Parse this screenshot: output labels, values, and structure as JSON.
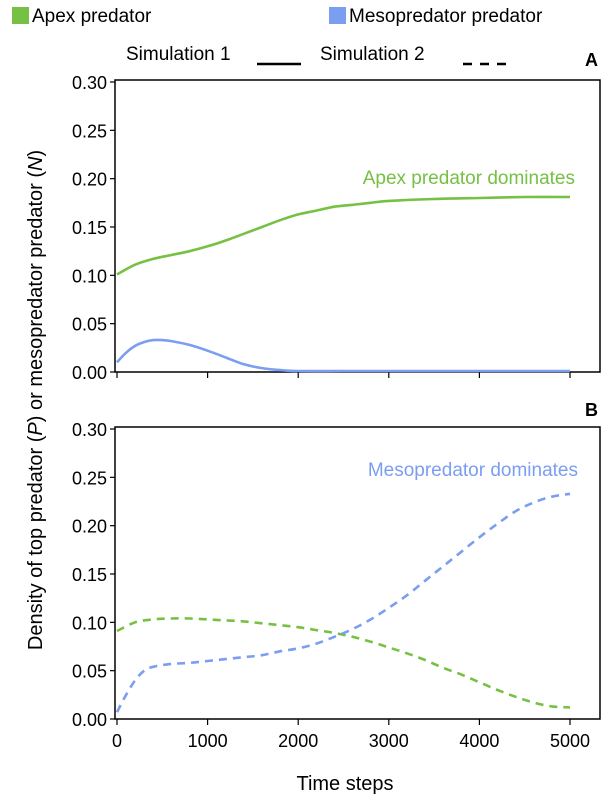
{
  "legend": {
    "apex_label": "Apex predator",
    "meso_label": "Mesopredator predator",
    "sim1_label": "Simulation 1",
    "sim2_label": "Simulation 2",
    "apex_color": "#76c043",
    "meso_color": "#7b9ef0"
  },
  "ylabel": "Density of top predator (P) or mesopredator predator (N)",
  "xlabel": "Time steps",
  "chart_data": [
    {
      "panel": "A",
      "type": "line",
      "annotation": "Apex predator dominates",
      "annotation_color": "#76c043",
      "xlim": [
        0,
        5000
      ],
      "ylim": [
        0,
        0.3
      ],
      "x_ticks": [
        0,
        1000,
        2000,
        3000,
        4000,
        5000
      ],
      "y_ticks": [
        "0.00",
        "0.05",
        "0.10",
        "0.15",
        "0.20",
        "0.25",
        "0.30"
      ],
      "series": [
        {
          "name": "Apex predator",
          "style": "solid",
          "color": "#76c043",
          "x": [
            0,
            200,
            400,
            600,
            800,
            1000,
            1200,
            1400,
            1600,
            1800,
            2000,
            2200,
            2400,
            2600,
            2800,
            3000,
            3500,
            4000,
            4500,
            5000
          ],
          "y": [
            0.101,
            0.111,
            0.117,
            0.121,
            0.125,
            0.13,
            0.136,
            0.143,
            0.15,
            0.157,
            0.163,
            0.167,
            0.171,
            0.173,
            0.175,
            0.177,
            0.179,
            0.18,
            0.181,
            0.181
          ]
        },
        {
          "name": "Mesopredator predator",
          "style": "solid",
          "color": "#7b9ef0",
          "x": [
            0,
            100,
            200,
            300,
            400,
            500,
            600,
            800,
            1000,
            1200,
            1400,
            1600,
            1800,
            2000,
            2500,
            3000,
            4000,
            5000
          ],
          "y": [
            0.01,
            0.02,
            0.027,
            0.031,
            0.033,
            0.033,
            0.032,
            0.028,
            0.022,
            0.015,
            0.008,
            0.004,
            0.002,
            0.001,
            0.001,
            0.001,
            0.001,
            0.001
          ]
        }
      ]
    },
    {
      "panel": "B",
      "type": "line",
      "annotation": "Mesopredator dominates",
      "annotation_color": "#7b9ef0",
      "xlim": [
        0,
        5000
      ],
      "ylim": [
        0,
        0.3
      ],
      "x_ticks": [
        0,
        1000,
        2000,
        3000,
        4000,
        5000
      ],
      "y_ticks": [
        "0.00",
        "0.05",
        "0.10",
        "0.15",
        "0.20",
        "0.25",
        "0.30"
      ],
      "series": [
        {
          "name": "Apex predator",
          "style": "dashed",
          "color": "#76c043",
          "x": [
            0,
            200,
            400,
            600,
            800,
            1000,
            1200,
            1400,
            1600,
            1800,
            2000,
            2200,
            2400,
            2600,
            2800,
            3000,
            3200,
            3400,
            3600,
            3800,
            4000,
            4200,
            4400,
            4600,
            4800,
            5000
          ],
          "y": [
            0.091,
            0.1,
            0.103,
            0.104,
            0.104,
            0.103,
            0.102,
            0.101,
            0.099,
            0.097,
            0.095,
            0.092,
            0.089,
            0.085,
            0.08,
            0.074,
            0.068,
            0.061,
            0.053,
            0.046,
            0.038,
            0.03,
            0.023,
            0.017,
            0.013,
            0.012
          ]
        },
        {
          "name": "Mesopredator predator",
          "style": "dashed",
          "color": "#7b9ef0",
          "x": [
            0,
            100,
            200,
            300,
            400,
            600,
            800,
            1000,
            1200,
            1400,
            1600,
            1800,
            2000,
            2200,
            2400,
            2600,
            2800,
            3000,
            3200,
            3400,
            3600,
            3800,
            4000,
            4200,
            4400,
            4600,
            4800,
            5000
          ],
          "y": [
            0.007,
            0.025,
            0.04,
            0.05,
            0.054,
            0.057,
            0.058,
            0.06,
            0.062,
            0.064,
            0.066,
            0.07,
            0.073,
            0.078,
            0.085,
            0.093,
            0.103,
            0.115,
            0.128,
            0.143,
            0.158,
            0.173,
            0.188,
            0.202,
            0.215,
            0.224,
            0.23,
            0.233
          ]
        }
      ]
    }
  ]
}
